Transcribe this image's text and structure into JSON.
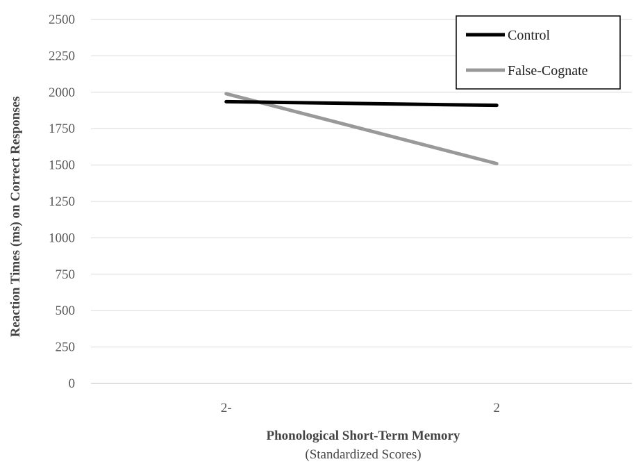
{
  "chart_data": {
    "type": "line",
    "categories": [
      "2-",
      "2"
    ],
    "series": [
      {
        "name": "Control",
        "values": [
          1935,
          1910
        ],
        "color": "#000000"
      },
      {
        "name": "False-Cognate",
        "values": [
          1990,
          1510
        ],
        "color": "#999999"
      }
    ],
    "ylabel": "Reaction Times (ms) on Correct Responses",
    "xlabel": "Phonological Short-Term Memory",
    "xlabel_sub": "(Standardized Scores)",
    "ylim": [
      0,
      2500
    ],
    "yticks": [
      0,
      250,
      500,
      750,
      1000,
      1250,
      1500,
      1750,
      2000,
      2250,
      2500
    ],
    "grid": true,
    "legend_position": "top-right"
  }
}
